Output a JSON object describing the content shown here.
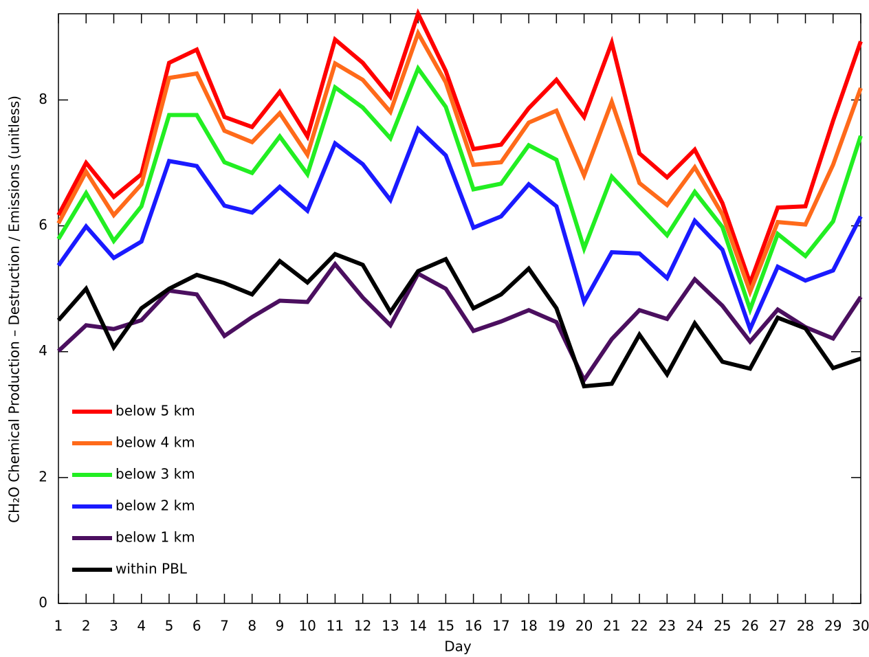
{
  "chart_data": {
    "type": "line",
    "xlabel": "Day",
    "ylabel": "CH₂O Chemical Production – Destruction / Emissions (unitless)",
    "x": [
      1,
      2,
      3,
      4,
      5,
      6,
      7,
      8,
      9,
      10,
      11,
      12,
      13,
      14,
      15,
      16,
      17,
      18,
      19,
      20,
      21,
      22,
      23,
      24,
      25,
      26,
      27,
      28,
      29,
      30
    ],
    "xlim": [
      1,
      30
    ],
    "xticks": [
      1,
      2,
      3,
      4,
      5,
      6,
      7,
      8,
      9,
      10,
      11,
      12,
      13,
      14,
      15,
      16,
      17,
      18,
      19,
      20,
      21,
      22,
      23,
      24,
      25,
      26,
      27,
      28,
      29,
      30
    ],
    "ylim": [
      0,
      9.37
    ],
    "yticks": [
      0,
      2,
      4,
      6,
      8
    ],
    "legend": "lower left",
    "series": [
      {
        "name": "below 5 km",
        "color": "#ff0000",
        "values": [
          6.17,
          7.0,
          6.46,
          6.82,
          8.59,
          8.8,
          7.73,
          7.57,
          8.13,
          7.42,
          8.96,
          8.59,
          8.05,
          9.37,
          8.46,
          7.22,
          7.29,
          7.87,
          8.32,
          7.73,
          8.91,
          7.15,
          6.77,
          7.21,
          6.36,
          5.09,
          6.29,
          6.31,
          7.67,
          8.93
        ]
      },
      {
        "name": "below 4 km",
        "color": "#ff6a1a",
        "values": [
          6.04,
          6.86,
          6.17,
          6.66,
          8.35,
          8.42,
          7.51,
          7.33,
          7.79,
          7.13,
          8.58,
          8.32,
          7.81,
          9.06,
          8.28,
          6.97,
          7.01,
          7.64,
          7.83,
          6.8,
          7.97,
          6.68,
          6.33,
          6.93,
          6.18,
          4.95,
          6.06,
          6.02,
          6.97,
          8.19
        ]
      },
      {
        "name": "below 3 km",
        "color": "#22ee22",
        "values": [
          5.79,
          6.52,
          5.76,
          6.31,
          7.76,
          7.76,
          7.01,
          6.84,
          7.42,
          6.82,
          8.2,
          7.88,
          7.39,
          8.5,
          7.89,
          6.58,
          6.67,
          7.28,
          7.05,
          5.64,
          6.78,
          6.31,
          5.85,
          6.54,
          5.98,
          4.67,
          5.87,
          5.52,
          6.07,
          7.43
        ]
      },
      {
        "name": "below 2 km",
        "color": "#1a1aff",
        "values": [
          5.37,
          5.99,
          5.49,
          5.75,
          7.03,
          6.95,
          6.32,
          6.21,
          6.62,
          6.24,
          7.31,
          6.98,
          6.41,
          7.54,
          7.12,
          5.97,
          6.15,
          6.66,
          6.31,
          4.79,
          5.58,
          5.56,
          5.17,
          6.08,
          5.62,
          4.36,
          5.35,
          5.13,
          5.29,
          6.15
        ]
      },
      {
        "name": "below 1 km",
        "color": "#4b0f5f",
        "values": [
          4.01,
          4.42,
          4.36,
          4.5,
          4.97,
          4.91,
          4.25,
          4.55,
          4.81,
          4.79,
          5.39,
          4.86,
          4.42,
          5.24,
          5.0,
          4.33,
          4.48,
          4.66,
          4.47,
          3.55,
          4.2,
          4.66,
          4.52,
          5.15,
          4.73,
          4.16,
          4.67,
          4.39,
          4.21,
          4.87
        ]
      },
      {
        "name": "within PBL",
        "color": "#000000",
        "values": [
          4.5,
          5.0,
          4.07,
          4.69,
          5.0,
          5.22,
          5.09,
          4.91,
          5.44,
          5.1,
          5.55,
          5.38,
          4.63,
          5.28,
          5.47,
          4.69,
          4.91,
          5.32,
          4.69,
          3.45,
          3.49,
          4.27,
          3.64,
          4.45,
          3.84,
          3.73,
          4.54,
          4.37,
          3.74,
          3.89
        ]
      }
    ]
  }
}
